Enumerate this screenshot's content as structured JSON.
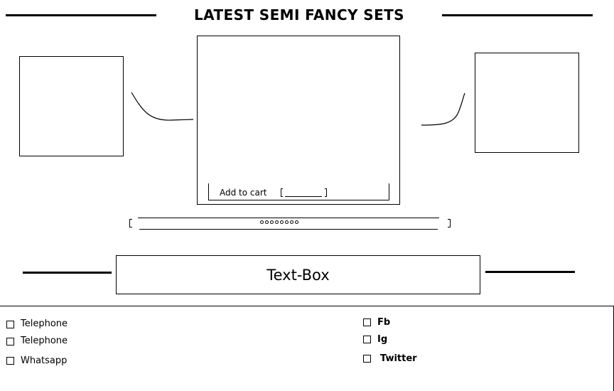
{
  "header": {
    "title": "LATEST SEMI FANCY SETS"
  },
  "product": {
    "add_to_cart_label": "Add to cart"
  },
  "carousel": {
    "dot_count": 8
  },
  "text_box": {
    "label": "Text-Box"
  },
  "contacts": {
    "left": [
      {
        "label": "Telephone"
      },
      {
        "label": "Telephone"
      },
      {
        "label": "Whatsapp"
      }
    ],
    "right": [
      {
        "label": "Fb"
      },
      {
        "label": "Ig"
      },
      {
        "label": "Twitter"
      }
    ]
  }
}
